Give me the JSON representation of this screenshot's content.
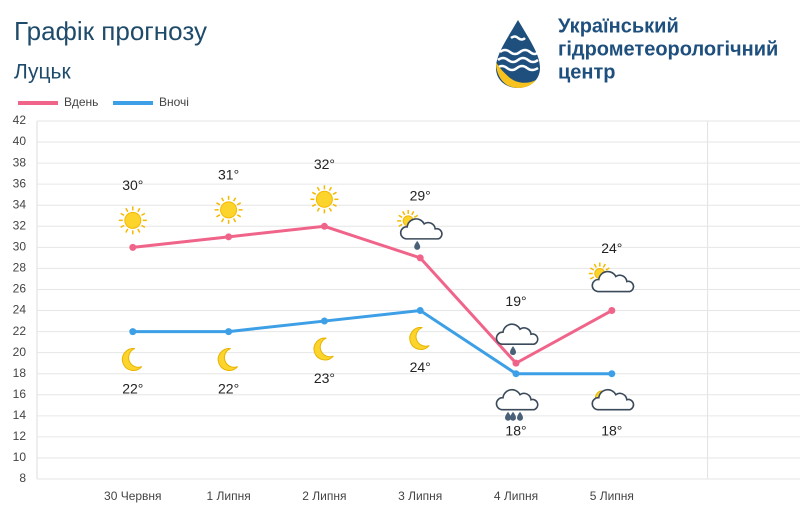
{
  "chart_data": {
    "type": "line",
    "title": "Графік прогнозу",
    "subtitle": "Луцьк",
    "organization": [
      "Український",
      "гідрометеорологічний",
      "центр"
    ],
    "categories": [
      "30 Червня",
      "1 Липня",
      "2 Липня",
      "3 Липня",
      "4 Липня",
      "5 Липня"
    ],
    "series": [
      {
        "name": "Вдень",
        "color": "#f0648a",
        "values": [
          30,
          31,
          32,
          29,
          19,
          24
        ],
        "value_labels": [
          "30°",
          "31°",
          "32°",
          "29°",
          "19°",
          "24°"
        ],
        "icons": [
          "sun",
          "sun",
          "sun",
          "sun-cloud-rain",
          "cloud-rain",
          "sun-cloud"
        ],
        "labels_above": true
      },
      {
        "name": "Вночі",
        "color": "#3d9fe6",
        "values": [
          22,
          22,
          23,
          24,
          18,
          18
        ],
        "value_labels": [
          "22°",
          "22°",
          "23°",
          "24°",
          "18°",
          "18°"
        ],
        "icons": [
          "moon",
          "moon",
          "moon",
          "moon",
          "cloud-rain",
          "moon-cloud"
        ],
        "labels_above": false
      }
    ],
    "ylim": [
      8,
      42
    ],
    "yticks": [
      8,
      10,
      12,
      14,
      16,
      18,
      20,
      22,
      24,
      26,
      28,
      30,
      32,
      34,
      36,
      38,
      40,
      42
    ],
    "grid": true
  }
}
